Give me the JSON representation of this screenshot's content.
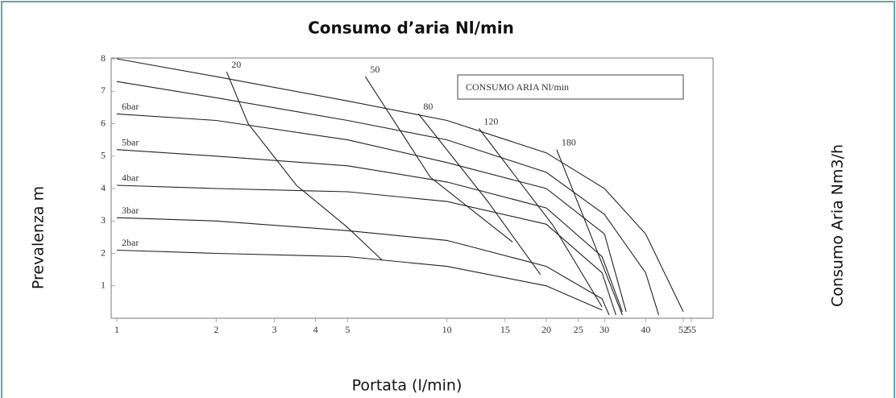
{
  "chart_data": {
    "type": "line",
    "title": "Consumo d’aria Nl/min",
    "xlabel": "Portata (l/min)",
    "ylabel": "Prevalenza m",
    "y2label": "Consumo Aria Nm3/h",
    "legend_box": "CONSUMO ARIA Nl/min",
    "xscale": "log",
    "xlim": [
      1,
      55
    ],
    "ylim": [
      0,
      8
    ],
    "xticks": [
      1,
      2,
      3,
      4,
      5,
      10,
      15,
      20,
      25,
      30,
      40,
      52,
      55
    ],
    "yticks": [
      1,
      2,
      3,
      4,
      5,
      6,
      7,
      8
    ],
    "color": "#222222",
    "series": [
      {
        "x": [
          1,
          2,
          5,
          10,
          20,
          30,
          40,
          52
        ],
        "values": [
          8.0,
          7.45,
          6.7,
          6.1,
          5.1,
          4.0,
          2.6,
          0.2
        ]
      },
      {
        "x": [
          1,
          2,
          5,
          10,
          20,
          30,
          40,
          43.8
        ],
        "values": [
          7.3,
          6.8,
          6.1,
          5.5,
          4.5,
          3.2,
          1.4,
          0.1
        ]
      },
      {
        "name": "6bar",
        "x": [
          1,
          2,
          5,
          10,
          20,
          30,
          34.9
        ],
        "values": [
          6.3,
          6.1,
          5.5,
          4.8,
          4.0,
          2.6,
          0.2
        ]
      },
      {
        "name": "5bar",
        "x": [
          1,
          2,
          5,
          10,
          20,
          29.5,
          34
        ],
        "values": [
          5.2,
          5.0,
          4.7,
          4.2,
          3.4,
          1.9,
          0.2
        ]
      },
      {
        "name": "4bar",
        "x": [
          1,
          2,
          5,
          10,
          20,
          29.5,
          32.5
        ],
        "values": [
          4.1,
          4.0,
          3.9,
          3.6,
          2.9,
          1.4,
          0.1
        ]
      },
      {
        "name": "3bar",
        "x": [
          1,
          2,
          5,
          10,
          20,
          29.5,
          31
        ],
        "values": [
          3.1,
          3.0,
          2.7,
          2.4,
          1.6,
          0.6,
          0.1
        ]
      },
      {
        "name": "2bar",
        "x": [
          1,
          2,
          5,
          10,
          20,
          29.5
        ],
        "values": [
          2.1,
          2.0,
          1.9,
          1.6,
          1.0,
          0.25
        ]
      },
      {
        "name": "20",
        "x": [
          2.15,
          2.5,
          3.5,
          5,
          6.35
        ],
        "values": [
          7.6,
          6.0,
          4.1,
          2.8,
          1.8
        ]
      },
      {
        "name": "50",
        "x": [
          5.66,
          8.9,
          15.8
        ],
        "values": [
          7.45,
          4.35,
          2.35
        ]
      },
      {
        "name": "80",
        "x": [
          8.2,
          13.3,
          19.2
        ],
        "values": [
          6.3,
          3.6,
          1.35
        ]
      },
      {
        "name": "120",
        "x": [
          12.5,
          21,
          29.5
        ],
        "values": [
          5.85,
          2.85,
          0.35
        ]
      },
      {
        "name": "180",
        "x": [
          21.5,
          27.8,
          34
        ],
        "values": [
          5.2,
          2.35,
          0.1
        ]
      }
    ]
  }
}
